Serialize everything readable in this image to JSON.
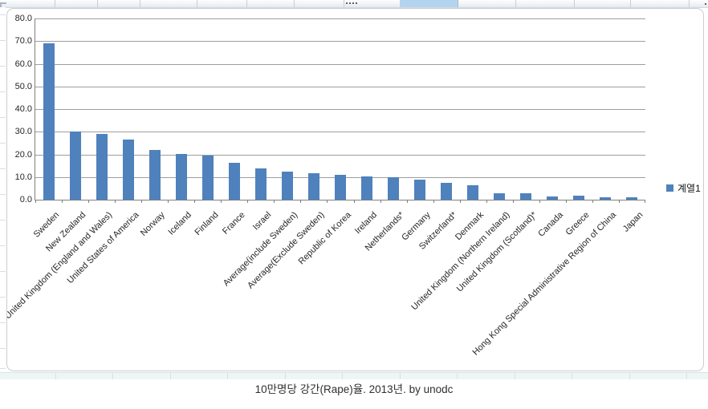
{
  "sheet": {
    "caption": "10만명당 강간(Rape)율. 2013년. by unodc"
  },
  "chart_data": {
    "type": "bar",
    "title": "",
    "legend": {
      "label": "계열1",
      "position": "right"
    },
    "categories": [
      "Sweden",
      "New Zealand",
      "United Kingdom (England and Wales)",
      "United States of America",
      "Norway",
      "Iceland",
      "Finland",
      "France",
      "Israel",
      "Average(include Sweden)",
      "Average(Exclude Sweden)",
      "Republic of Korea",
      "Ireland",
      "Netherlands*",
      "Germany",
      "Switzerland*",
      "Denmark",
      "United Kingdom (Northern Ireland)",
      "United Kingdom (Scotland)*",
      "Canada",
      "Greece",
      "Hong Kong Special Administrative Region of China",
      "Japan"
    ],
    "values": [
      69.2,
      30.2,
      29.2,
      26.7,
      21.8,
      20.1,
      19.4,
      16.4,
      13.7,
      12.5,
      11.6,
      11.1,
      10.2,
      9.8,
      9.0,
      7.3,
      6.2,
      3.0,
      2.7,
      1.5,
      1.8,
      1.2,
      0.9
    ],
    "ylim": [
      0,
      80
    ],
    "ytick_step": 10,
    "ytick_labels": [
      "0.0",
      "10.0",
      "20.0",
      "30.0",
      "40.0",
      "50.0",
      "60.0",
      "70.0",
      "80.0"
    ],
    "grid": true,
    "bar_color": "#4F81BD",
    "gridline_color": "#9e9e9e",
    "axis_color": "#808080",
    "label_color": "#262626"
  },
  "colors": {
    "selected_cell": "#b3d4ee",
    "chart_border": "#c9cdd2",
    "bottom_strip": "#eef6f5"
  }
}
